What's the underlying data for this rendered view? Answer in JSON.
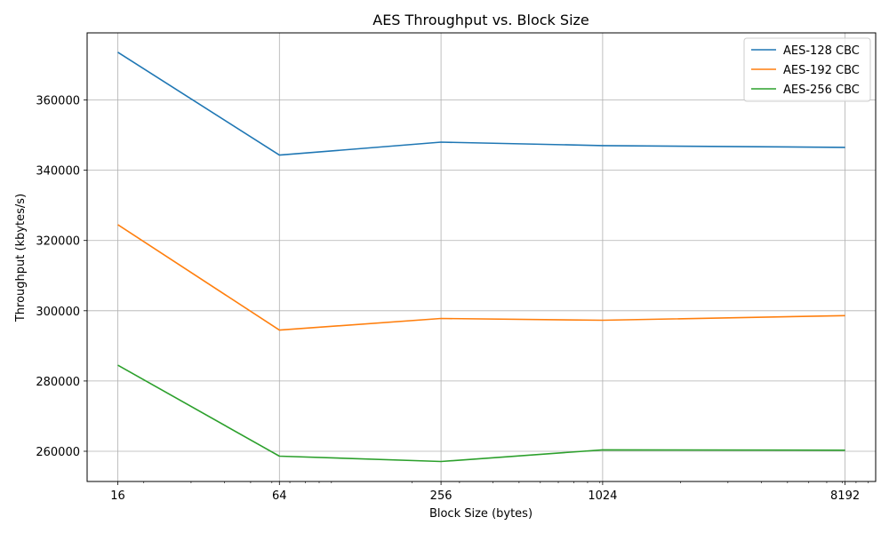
{
  "chart_data": {
    "type": "line",
    "title": "AES Throughput vs. Block Size",
    "xlabel": "Block Size (bytes)",
    "ylabel": "Throughput (kbytes/s)",
    "x_scale": "log2",
    "x": [
      16,
      64,
      256,
      1024,
      8192
    ],
    "x_tick_labels": [
      "16",
      "64",
      "256",
      "1024",
      "8192"
    ],
    "xlim": [
      12.3,
      10650
    ],
    "ylim": [
      251400,
      379100
    ],
    "y_ticks": [
      260000,
      280000,
      300000,
      320000,
      340000,
      360000
    ],
    "y_tick_labels": [
      "260000",
      "280000",
      "300000",
      "320000",
      "340000",
      "360000"
    ],
    "grid": true,
    "legend_position": "top-right",
    "series": [
      {
        "name": "AES-128 CBC",
        "color": "#1f77b4",
        "values": [
          373600,
          344300,
          348000,
          347000,
          346500
        ]
      },
      {
        "name": "AES-192 CBC",
        "color": "#ff7f0e",
        "values": [
          324500,
          294500,
          297800,
          297300,
          298600
        ]
      },
      {
        "name": "AES-256 CBC",
        "color": "#2ca02c",
        "values": [
          284500,
          258600,
          257100,
          260400,
          260300
        ]
      }
    ]
  }
}
